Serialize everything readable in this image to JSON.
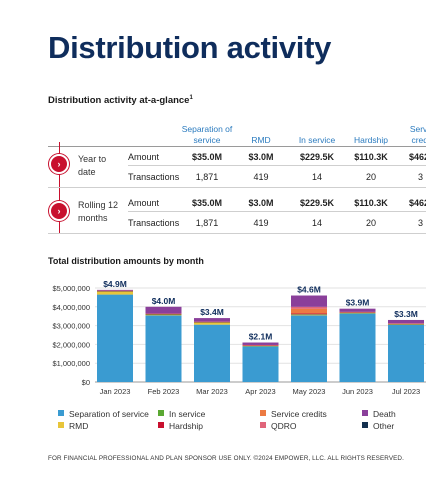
{
  "title": "Distribution activity",
  "glance_title": "Distribution activity at-a-glance",
  "glance_sup": "1",
  "table": {
    "headers": [
      "Separation of service",
      "RMD",
      "In service",
      "Hardship",
      "Service credits"
    ],
    "rows": [
      {
        "label": "Year to date",
        "amount_label": "Amount",
        "transactions_label": "Transactions",
        "amounts": [
          "$35.0M",
          "$3.0M",
          "$229.5K",
          "$110.3K",
          "$462"
        ],
        "transactions": [
          "1,871",
          "419",
          "14",
          "20",
          "3"
        ]
      },
      {
        "label": "Rolling 12 months",
        "amount_label": "Amount",
        "transactions_label": "Transactions",
        "amounts": [
          "$35.0M",
          "$3.0M",
          "$229.5K",
          "$110.3K",
          "$462"
        ],
        "transactions": [
          "1,871",
          "419",
          "14",
          "20",
          "3"
        ]
      }
    ],
    "arrow_glyph": "›"
  },
  "chart_title": "Total distribution amounts by month",
  "chart_data": {
    "type": "bar",
    "stacked": true,
    "categories": [
      "Jan 2023",
      "Feb 2023",
      "Mar 2023",
      "Apr 2023",
      "May 2023",
      "Jun 2023",
      "Jul 2023"
    ],
    "totals_labels": [
      "$4.9M",
      "$4.0M",
      "$3.4M",
      "$2.1M",
      "$4.6M",
      "$3.9M",
      "$3.3M"
    ],
    "yticks": [
      0,
      1000000,
      2000000,
      3000000,
      4000000,
      5000000
    ],
    "ytick_labels": [
      "$0",
      "$1,000,000",
      "$2,000,000",
      "$3,000,000",
      "$4,000,000",
      "$5,000,000"
    ],
    "ylim": [
      0,
      5000000
    ],
    "grid": true,
    "series": [
      {
        "name": "Separation of service",
        "color": "#3a9bd1",
        "values": [
          4650000,
          3550000,
          3050000,
          1900000,
          3550000,
          3650000,
          3050000
        ]
      },
      {
        "name": "RMD",
        "color": "#e8c53a",
        "values": [
          150000,
          20000,
          100000,
          20000,
          20000,
          20000,
          20000
        ]
      },
      {
        "name": "In service",
        "color": "#5aa832",
        "values": [
          20000,
          20000,
          20000,
          10000,
          30000,
          20000,
          10000
        ]
      },
      {
        "name": "Hardship",
        "color": "#c8102e",
        "values": [
          20000,
          30000,
          20000,
          20000,
          50000,
          20000,
          20000
        ]
      },
      {
        "name": "Service credits",
        "color": "#ec7a42",
        "values": [
          10000,
          10000,
          10000,
          10000,
          250000,
          10000,
          10000
        ]
      },
      {
        "name": "QDRO",
        "color": "#e0657a",
        "values": [
          10000,
          10000,
          10000,
          10000,
          100000,
          10000,
          10000
        ]
      },
      {
        "name": "Death",
        "color": "#8a3f9a",
        "values": [
          40000,
          360000,
          190000,
          130000,
          600000,
          170000,
          180000
        ]
      },
      {
        "name": "Other",
        "color": "#14304f",
        "values": [
          0,
          0,
          0,
          0,
          0,
          0,
          0
        ]
      }
    ],
    "legend_position": "bottom"
  },
  "footer": "FOR FINANCIAL PROFESSIONAL AND PLAN SPONSOR USE ONLY. ©2024 EMPOWER, LLC. ALL RIGHTS RESERVED."
}
